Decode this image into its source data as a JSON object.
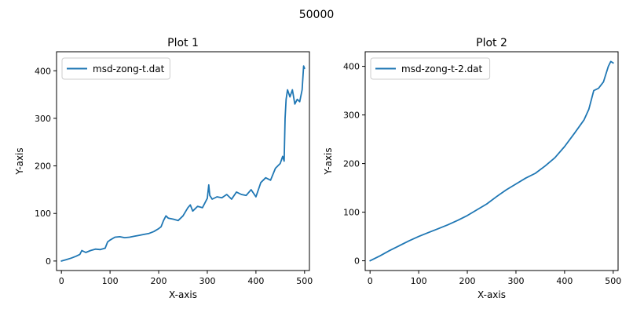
{
  "figure": {
    "suptitle": "50000"
  },
  "chart_data": [
    {
      "type": "line",
      "title": "Plot 1",
      "xlabel": "X-axis",
      "ylabel": "Y-axis",
      "xlim": [
        -10,
        510
      ],
      "ylim": [
        -20,
        440
      ],
      "xticks": [
        0,
        100,
        200,
        300,
        400,
        500
      ],
      "yticks": [
        0,
        100,
        200,
        300,
        400
      ],
      "grid": false,
      "legend": "upper-left",
      "series": [
        {
          "name": "msd-zong-t.dat",
          "color": "#1f77b4",
          "x": [
            0,
            10,
            20,
            30,
            38,
            42,
            50,
            60,
            70,
            80,
            90,
            95,
            100,
            110,
            120,
            130,
            140,
            150,
            160,
            170,
            180,
            190,
            200,
            205,
            210,
            215,
            220,
            230,
            240,
            250,
            260,
            265,
            270,
            275,
            280,
            290,
            300,
            303,
            305,
            310,
            320,
            330,
            340,
            350,
            360,
            370,
            380,
            390,
            400,
            410,
            420,
            430,
            440,
            450,
            455,
            458,
            460,
            462,
            465,
            470,
            475,
            480,
            485,
            490,
            495,
            498,
            500
          ],
          "y": [
            0,
            3,
            6,
            10,
            14,
            22,
            18,
            22,
            25,
            24,
            27,
            40,
            44,
            50,
            51,
            49,
            50,
            52,
            54,
            56,
            58,
            62,
            68,
            72,
            85,
            95,
            90,
            88,
            85,
            95,
            112,
            118,
            105,
            110,
            115,
            112,
            132,
            160,
            138,
            130,
            135,
            133,
            140,
            130,
            145,
            140,
            138,
            150,
            135,
            165,
            175,
            170,
            195,
            205,
            220,
            210,
            300,
            340,
            360,
            345,
            360,
            330,
            340,
            335,
            360,
            410,
            405
          ]
        }
      ]
    },
    {
      "type": "line",
      "title": "Plot 2",
      "xlabel": "X-axis",
      "ylabel": "Y-axis",
      "xlim": [
        -10,
        510
      ],
      "ylim": [
        -20,
        430
      ],
      "xticks": [
        0,
        100,
        200,
        300,
        400,
        500
      ],
      "yticks": [
        0,
        100,
        200,
        300,
        400
      ],
      "grid": false,
      "legend": "upper-left",
      "series": [
        {
          "name": "msd-zong-t-2.dat",
          "color": "#1f77b4",
          "x": [
            0,
            20,
            40,
            60,
            80,
            100,
            120,
            140,
            160,
            180,
            200,
            220,
            240,
            260,
            280,
            300,
            320,
            340,
            360,
            380,
            400,
            420,
            440,
            450,
            460,
            470,
            480,
            490,
            495,
            500
          ],
          "y": [
            0,
            10,
            21,
            31,
            41,
            50,
            58,
            66,
            74,
            83,
            93,
            105,
            117,
            132,
            146,
            158,
            170,
            180,
            195,
            212,
            235,
            262,
            290,
            312,
            350,
            355,
            368,
            400,
            410,
            407
          ]
        }
      ]
    }
  ]
}
